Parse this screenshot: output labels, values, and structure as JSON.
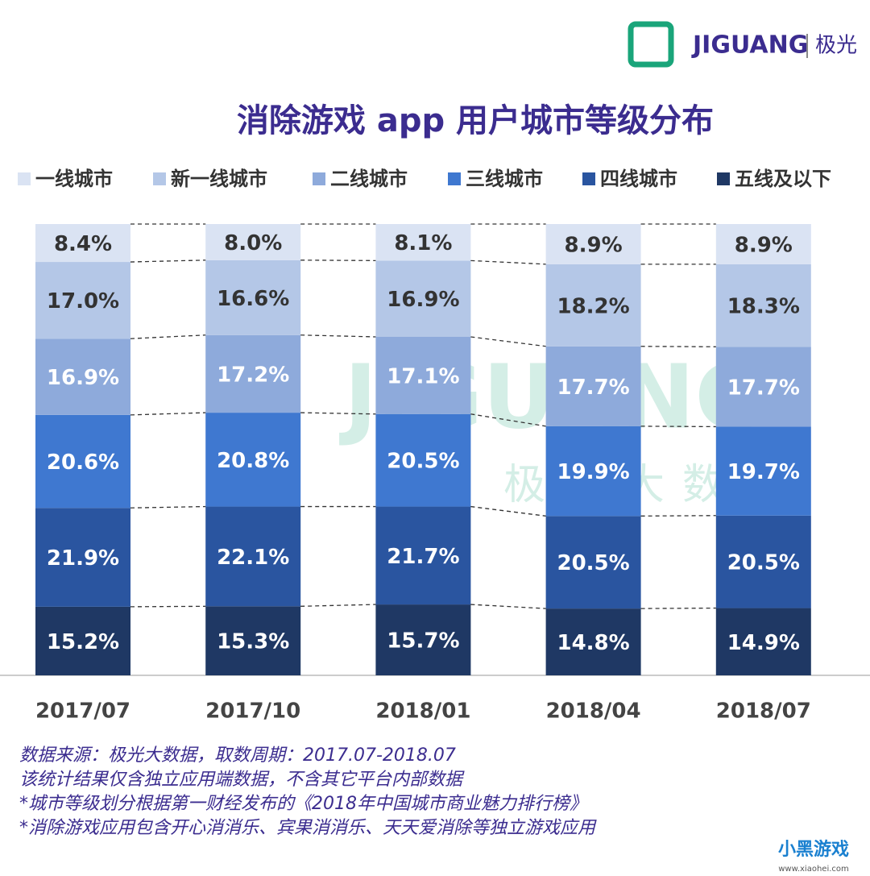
{
  "logo": {
    "brand": "JIGUANG",
    "brand_cn": "极光"
  },
  "watermark": {
    "brand": "JIGUANG",
    "text": "极光大数据"
  },
  "chart_data": {
    "type": "stacked_bar",
    "title": "消除游戏 app 用户城市等级分布",
    "categories": [
      "2017/07",
      "2017/10",
      "2018/01",
      "2018/04",
      "2018/07"
    ],
    "series": [
      {
        "name": "一线城市",
        "color": "#dae3f3",
        "values": [
          8.4,
          8.0,
          8.1,
          8.9,
          8.9
        ],
        "value_labels": [
          "8.4%",
          "8.0%",
          "8.1%",
          "8.9%",
          "8.9%"
        ]
      },
      {
        "name": "新一线城市",
        "color": "#b4c7e7",
        "values": [
          17.0,
          16.6,
          16.9,
          18.2,
          18.3
        ],
        "value_labels": [
          "17.0%",
          "16.6%",
          "16.9%",
          "18.2%",
          "18.3%"
        ]
      },
      {
        "name": "二线城市",
        "color": "#8eaadb",
        "values": [
          16.9,
          17.2,
          17.1,
          17.7,
          17.7
        ],
        "value_labels": [
          "16.9%",
          "17.2%",
          "17.1%",
          "17.7%",
          "17.7%"
        ]
      },
      {
        "name": "三线城市",
        "color": "#3f78d0",
        "values": [
          20.6,
          20.8,
          20.5,
          19.9,
          19.7
        ],
        "value_labels": [
          "20.6%",
          "20.8%",
          "20.5%",
          "19.9%",
          "19.7%"
        ]
      },
      {
        "name": "四线城市",
        "color": "#2a55a0",
        "values": [
          21.9,
          22.1,
          21.7,
          20.5,
          20.5
        ],
        "value_labels": [
          "21.9%",
          "22.1%",
          "21.7%",
          "20.5%",
          "20.5%"
        ]
      },
      {
        "name": "五线及以下",
        "color": "#1f3864",
        "values": [
          15.2,
          15.3,
          15.7,
          14.8,
          14.9
        ],
        "value_labels": [
          "15.2%",
          "15.3%",
          "15.7%",
          "14.8%",
          "14.9%"
        ]
      }
    ],
    "notes": [
      "数据来源：极光大数据，取数周期：2017.07-2018.07",
      "该统计结果仅含独立应用端数据，不含其它平台内部数据",
      "*城市等级划分根据第一财经发布的《2018年中国城市商业魅力排行榜》",
      "*消除游戏应用包含开心消消乐、宾果消消乐、天天爱消除等独立游戏应用"
    ]
  },
  "corner_logo": {
    "name": "小黑游戏",
    "url": "www.xiaohei.com"
  }
}
